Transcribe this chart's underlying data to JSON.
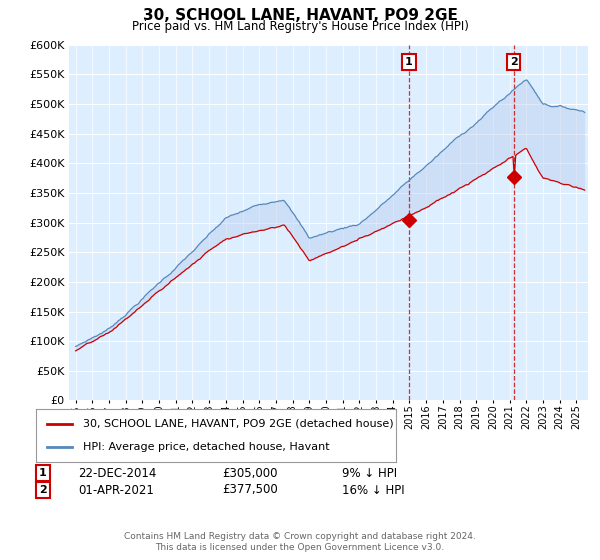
{
  "title": "30, SCHOOL LANE, HAVANT, PO9 2GE",
  "subtitle": "Price paid vs. HM Land Registry's House Price Index (HPI)",
  "legend_label_red": "30, SCHOOL LANE, HAVANT, PO9 2GE (detached house)",
  "legend_label_blue": "HPI: Average price, detached house, Havant",
  "annotation1_label": "1",
  "annotation1_date": "22-DEC-2014",
  "annotation1_price": "£305,000",
  "annotation1_hpi": "9% ↓ HPI",
  "annotation1_year": 2014.97,
  "annotation1_value": 305000,
  "annotation2_label": "2",
  "annotation2_date": "01-APR-2021",
  "annotation2_price": "£377,500",
  "annotation2_hpi": "16% ↓ HPI",
  "annotation2_year": 2021.25,
  "annotation2_value": 377500,
  "footer": "Contains HM Land Registry data © Crown copyright and database right 2024.\nThis data is licensed under the Open Government Licence v3.0.",
  "ylim": [
    0,
    600000
  ],
  "yticks": [
    0,
    50000,
    100000,
    150000,
    200000,
    250000,
    300000,
    350000,
    400000,
    450000,
    500000,
    550000,
    600000
  ],
  "red_color": "#cc0000",
  "blue_color": "#5588bb",
  "fill_blue_color": "#bbccee",
  "plot_bg": "#ddeeff",
  "fig_bg": "#ffffff"
}
